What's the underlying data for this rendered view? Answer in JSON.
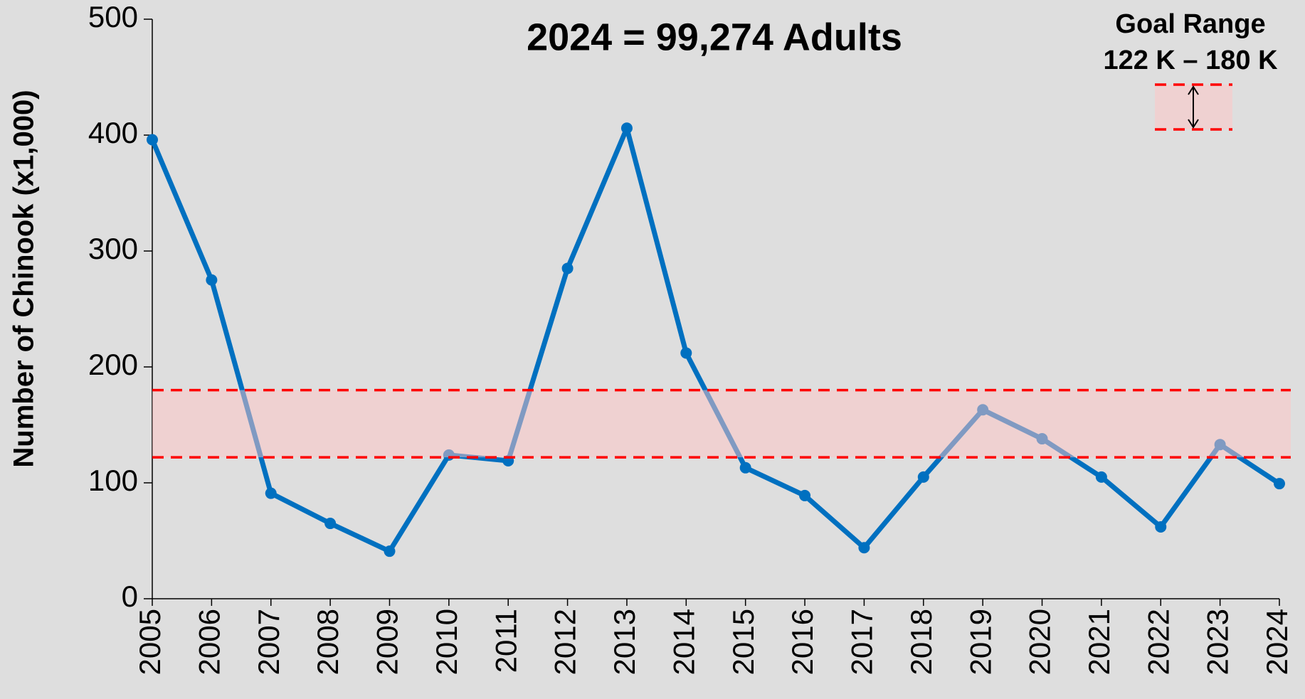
{
  "chart_data": {
    "type": "line",
    "title": "2024 = 99,274 Adults",
    "y_label": "Number of Chinook (x1,000)",
    "categories": [
      "2005",
      "2006",
      "2007",
      "2008",
      "2009",
      "2010",
      "2011",
      "2012",
      "2013",
      "2014",
      "2015",
      "2016",
      "2017",
      "2018",
      "2019",
      "2020",
      "2021",
      "2022",
      "2023",
      "2024"
    ],
    "series": [
      {
        "name": "Chinook",
        "color": "#0070c0",
        "values": [
          396,
          275,
          91,
          65,
          41,
          124,
          119,
          285,
          406,
          212,
          113,
          89,
          44,
          105,
          163,
          138,
          105,
          62,
          133,
          99.274
        ]
      }
    ],
    "ylim": [
      0,
      500
    ],
    "yticks": [
      0,
      100,
      200,
      300,
      400,
      500
    ],
    "grid": false,
    "goal_range": {
      "title": "Goal Range",
      "label": "122 K – 180 K",
      "values": [
        122,
        180
      ],
      "color": "#ff0000",
      "fill": "#ffc4c4"
    }
  }
}
